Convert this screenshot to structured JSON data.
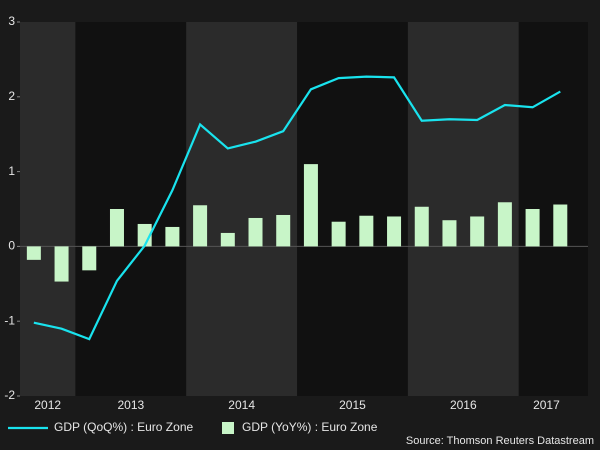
{
  "chart_data": {
    "type": "bar_line",
    "x": [
      2012.625,
      2012.875,
      2013.125,
      2013.375,
      2013.625,
      2013.875,
      2014.125,
      2014.375,
      2014.625,
      2014.875,
      2015.125,
      2015.375,
      2015.625,
      2015.875,
      2016.125,
      2016.375,
      2016.625,
      2016.875,
      2017.125,
      2017.375
    ],
    "series": [
      {
        "name": "GDP (QoQ%) : Euro Zone",
        "type": "line",
        "color": "#19e3ee",
        "values": [
          -1.02,
          -1.1,
          -1.24,
          -0.46,
          0.01,
          0.75,
          1.63,
          1.31,
          1.4,
          1.54,
          2.1,
          2.25,
          2.27,
          2.26,
          1.68,
          1.7,
          1.69,
          1.89,
          1.86,
          2.07
        ]
      },
      {
        "name": "GDP (YoY%) : Euro Zone",
        "type": "bar",
        "color": "#c8f5c8",
        "values": [
          -0.18,
          -0.47,
          -0.32,
          0.5,
          0.3,
          0.26,
          0.55,
          0.18,
          0.38,
          0.42,
          1.1,
          0.33,
          0.41,
          0.4,
          0.53,
          0.35,
          0.4,
          0.59,
          0.5,
          0.56
        ]
      }
    ],
    "xlim": [
      2012.5,
      2017.625
    ],
    "xticks": [
      {
        "value": 2012.75,
        "label": "2012"
      },
      {
        "value": 2013.5,
        "label": "2013"
      },
      {
        "value": 2014.5,
        "label": "2014"
      },
      {
        "value": 2015.5,
        "label": "2015"
      },
      {
        "value": 2016.5,
        "label": "2016"
      },
      {
        "value": 2017.25,
        "label": "2017"
      }
    ],
    "ylim": [
      -2,
      3
    ],
    "yticks": [
      -2,
      -1,
      0,
      1,
      2,
      3
    ],
    "source": "Source: Thomson Reuters Datastream",
    "legend": "bottom"
  }
}
